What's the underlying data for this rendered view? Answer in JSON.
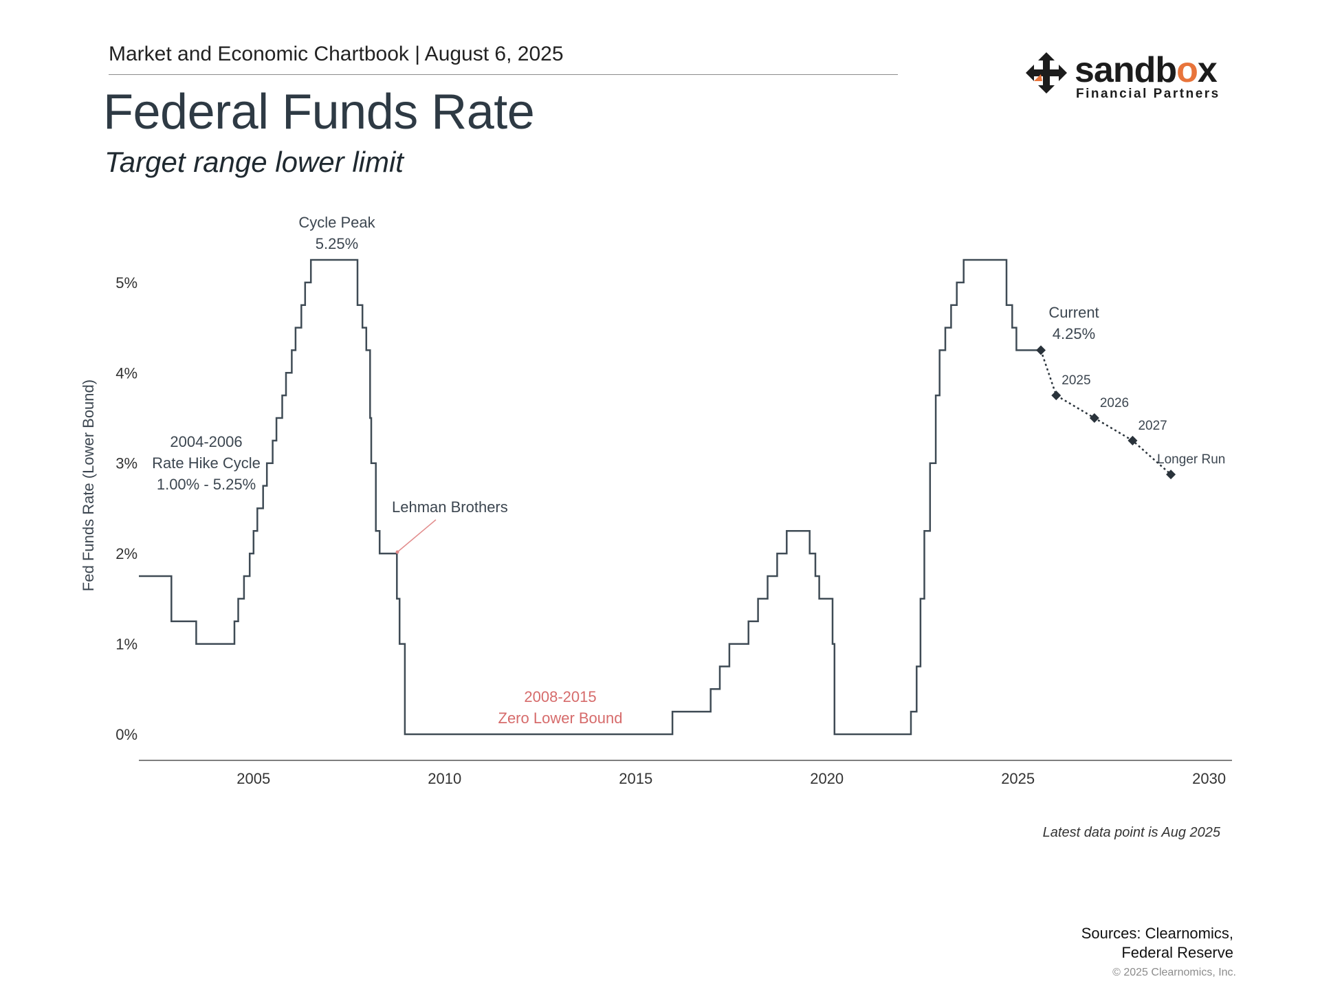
{
  "header": {
    "line": "Market and Economic Chartbook | August 6, 2025",
    "title": "Federal Funds Rate",
    "subtitle": "Target range lower limit"
  },
  "logo": {
    "word_pre": "sandb",
    "word_o": "o",
    "word_post": "x",
    "sub": "Financial Partners",
    "accent_color": "#e8743b"
  },
  "chart_data": {
    "type": "line",
    "ylabel": "Fed Funds Rate (Lower Bound)",
    "xlim": [
      2002.0,
      2030.6
    ],
    "ylim": [
      0,
      5.25
    ],
    "x_ticks": [
      2005,
      2010,
      2015,
      2020,
      2025,
      2030
    ],
    "y_ticks": [
      {
        "value": 0,
        "label": "0%"
      },
      {
        "value": 1,
        "label": "1%"
      },
      {
        "value": 2,
        "label": "2%"
      },
      {
        "value": 3,
        "label": "3%"
      },
      {
        "value": 4,
        "label": "4%"
      },
      {
        "value": 5,
        "label": "5%"
      }
    ],
    "grid": false,
    "series": [
      {
        "style": "step",
        "color": "#3f4b55",
        "points": [
          [
            2002.0,
            1.75
          ],
          [
            2002.85,
            1.75
          ],
          [
            2002.85,
            1.25
          ],
          [
            2003.5,
            1.25
          ],
          [
            2003.5,
            1.0
          ],
          [
            2004.5,
            1.0
          ],
          [
            2004.5,
            1.25
          ],
          [
            2004.6,
            1.25
          ],
          [
            2004.6,
            1.5
          ],
          [
            2004.75,
            1.5
          ],
          [
            2004.75,
            1.75
          ],
          [
            2004.9,
            1.75
          ],
          [
            2004.9,
            2.0
          ],
          [
            2005.0,
            2.0
          ],
          [
            2005.0,
            2.25
          ],
          [
            2005.1,
            2.25
          ],
          [
            2005.1,
            2.5
          ],
          [
            2005.25,
            2.5
          ],
          [
            2005.25,
            2.75
          ],
          [
            2005.35,
            2.75
          ],
          [
            2005.35,
            3.0
          ],
          [
            2005.5,
            3.0
          ],
          [
            2005.5,
            3.25
          ],
          [
            2005.6,
            3.25
          ],
          [
            2005.6,
            3.5
          ],
          [
            2005.75,
            3.5
          ],
          [
            2005.75,
            3.75
          ],
          [
            2005.85,
            3.75
          ],
          [
            2005.85,
            4.0
          ],
          [
            2006.0,
            4.0
          ],
          [
            2006.0,
            4.25
          ],
          [
            2006.1,
            4.25
          ],
          [
            2006.1,
            4.5
          ],
          [
            2006.25,
            4.5
          ],
          [
            2006.25,
            4.75
          ],
          [
            2006.35,
            4.75
          ],
          [
            2006.35,
            5.0
          ],
          [
            2006.5,
            5.0
          ],
          [
            2006.5,
            5.25
          ],
          [
            2007.72,
            5.25
          ],
          [
            2007.72,
            4.75
          ],
          [
            2007.85,
            4.75
          ],
          [
            2007.85,
            4.5
          ],
          [
            2007.95,
            4.5
          ],
          [
            2007.95,
            4.25
          ],
          [
            2008.05,
            4.25
          ],
          [
            2008.05,
            3.5
          ],
          [
            2008.08,
            3.5
          ],
          [
            2008.08,
            3.0
          ],
          [
            2008.2,
            3.0
          ],
          [
            2008.2,
            2.25
          ],
          [
            2008.3,
            2.25
          ],
          [
            2008.3,
            2.0
          ],
          [
            2008.75,
            2.0
          ],
          [
            2008.75,
            1.5
          ],
          [
            2008.82,
            1.5
          ],
          [
            2008.82,
            1.0
          ],
          [
            2008.96,
            1.0
          ],
          [
            2008.96,
            0.0
          ],
          [
            2015.96,
            0.0
          ],
          [
            2015.96,
            0.25
          ],
          [
            2016.96,
            0.25
          ],
          [
            2016.96,
            0.5
          ],
          [
            2017.2,
            0.5
          ],
          [
            2017.2,
            0.75
          ],
          [
            2017.45,
            0.75
          ],
          [
            2017.45,
            1.0
          ],
          [
            2017.95,
            1.0
          ],
          [
            2017.95,
            1.25
          ],
          [
            2018.2,
            1.25
          ],
          [
            2018.2,
            1.5
          ],
          [
            2018.45,
            1.5
          ],
          [
            2018.45,
            1.75
          ],
          [
            2018.7,
            1.75
          ],
          [
            2018.7,
            2.0
          ],
          [
            2018.95,
            2.0
          ],
          [
            2018.95,
            2.25
          ],
          [
            2019.55,
            2.25
          ],
          [
            2019.55,
            2.0
          ],
          [
            2019.7,
            2.0
          ],
          [
            2019.7,
            1.75
          ],
          [
            2019.8,
            1.75
          ],
          [
            2019.8,
            1.5
          ],
          [
            2020.15,
            1.5
          ],
          [
            2020.15,
            1.0
          ],
          [
            2020.2,
            1.0
          ],
          [
            2020.2,
            0.0
          ],
          [
            2022.2,
            0.0
          ],
          [
            2022.2,
            0.25
          ],
          [
            2022.35,
            0.25
          ],
          [
            2022.35,
            0.75
          ],
          [
            2022.45,
            0.75
          ],
          [
            2022.45,
            1.5
          ],
          [
            2022.55,
            1.5
          ],
          [
            2022.55,
            2.25
          ],
          [
            2022.7,
            2.25
          ],
          [
            2022.7,
            3.0
          ],
          [
            2022.85,
            3.0
          ],
          [
            2022.85,
            3.75
          ],
          [
            2022.95,
            3.75
          ],
          [
            2022.95,
            4.25
          ],
          [
            2023.1,
            4.25
          ],
          [
            2023.1,
            4.5
          ],
          [
            2023.25,
            4.5
          ],
          [
            2023.25,
            4.75
          ],
          [
            2023.4,
            4.75
          ],
          [
            2023.4,
            5.0
          ],
          [
            2023.58,
            5.0
          ],
          [
            2023.58,
            5.25
          ],
          [
            2024.7,
            5.25
          ],
          [
            2024.7,
            4.75
          ],
          [
            2024.85,
            4.75
          ],
          [
            2024.85,
            4.5
          ],
          [
            2024.96,
            4.5
          ],
          [
            2024.96,
            4.25
          ],
          [
            2025.6,
            4.25
          ]
        ]
      },
      {
        "style": "dotted",
        "color": "#2a333b",
        "marker": "diamond",
        "points": [
          [
            2025.6,
            4.25
          ],
          [
            2026.0,
            3.75
          ],
          [
            2027.0,
            3.5
          ],
          [
            2028.0,
            3.25
          ],
          [
            2029.0,
            2.875
          ]
        ],
        "labels": [
          "",
          "2025",
          "2026",
          "2027",
          "Longer Run"
        ]
      }
    ],
    "annotations": {
      "cycle_peak": [
        "Cycle Peak",
        "5.25%"
      ],
      "hike_cycle": [
        "2004-2006",
        "Rate Hike Cycle",
        "1.00% - 5.25%"
      ],
      "lehman": "Lehman Brothers",
      "zlb": [
        "2008-2015",
        "Zero Lower Bound"
      ],
      "current": [
        "Current",
        "4.25%"
      ]
    },
    "annotation_colors": {
      "text": "#3c4650",
      "highlight": "#d66b6b"
    }
  },
  "footnote": "Latest data point is Aug 2025",
  "sources": [
    "Sources: Clearnomics,",
    "Federal Reserve"
  ],
  "copyright": "© 2025 Clearnomics, Inc."
}
